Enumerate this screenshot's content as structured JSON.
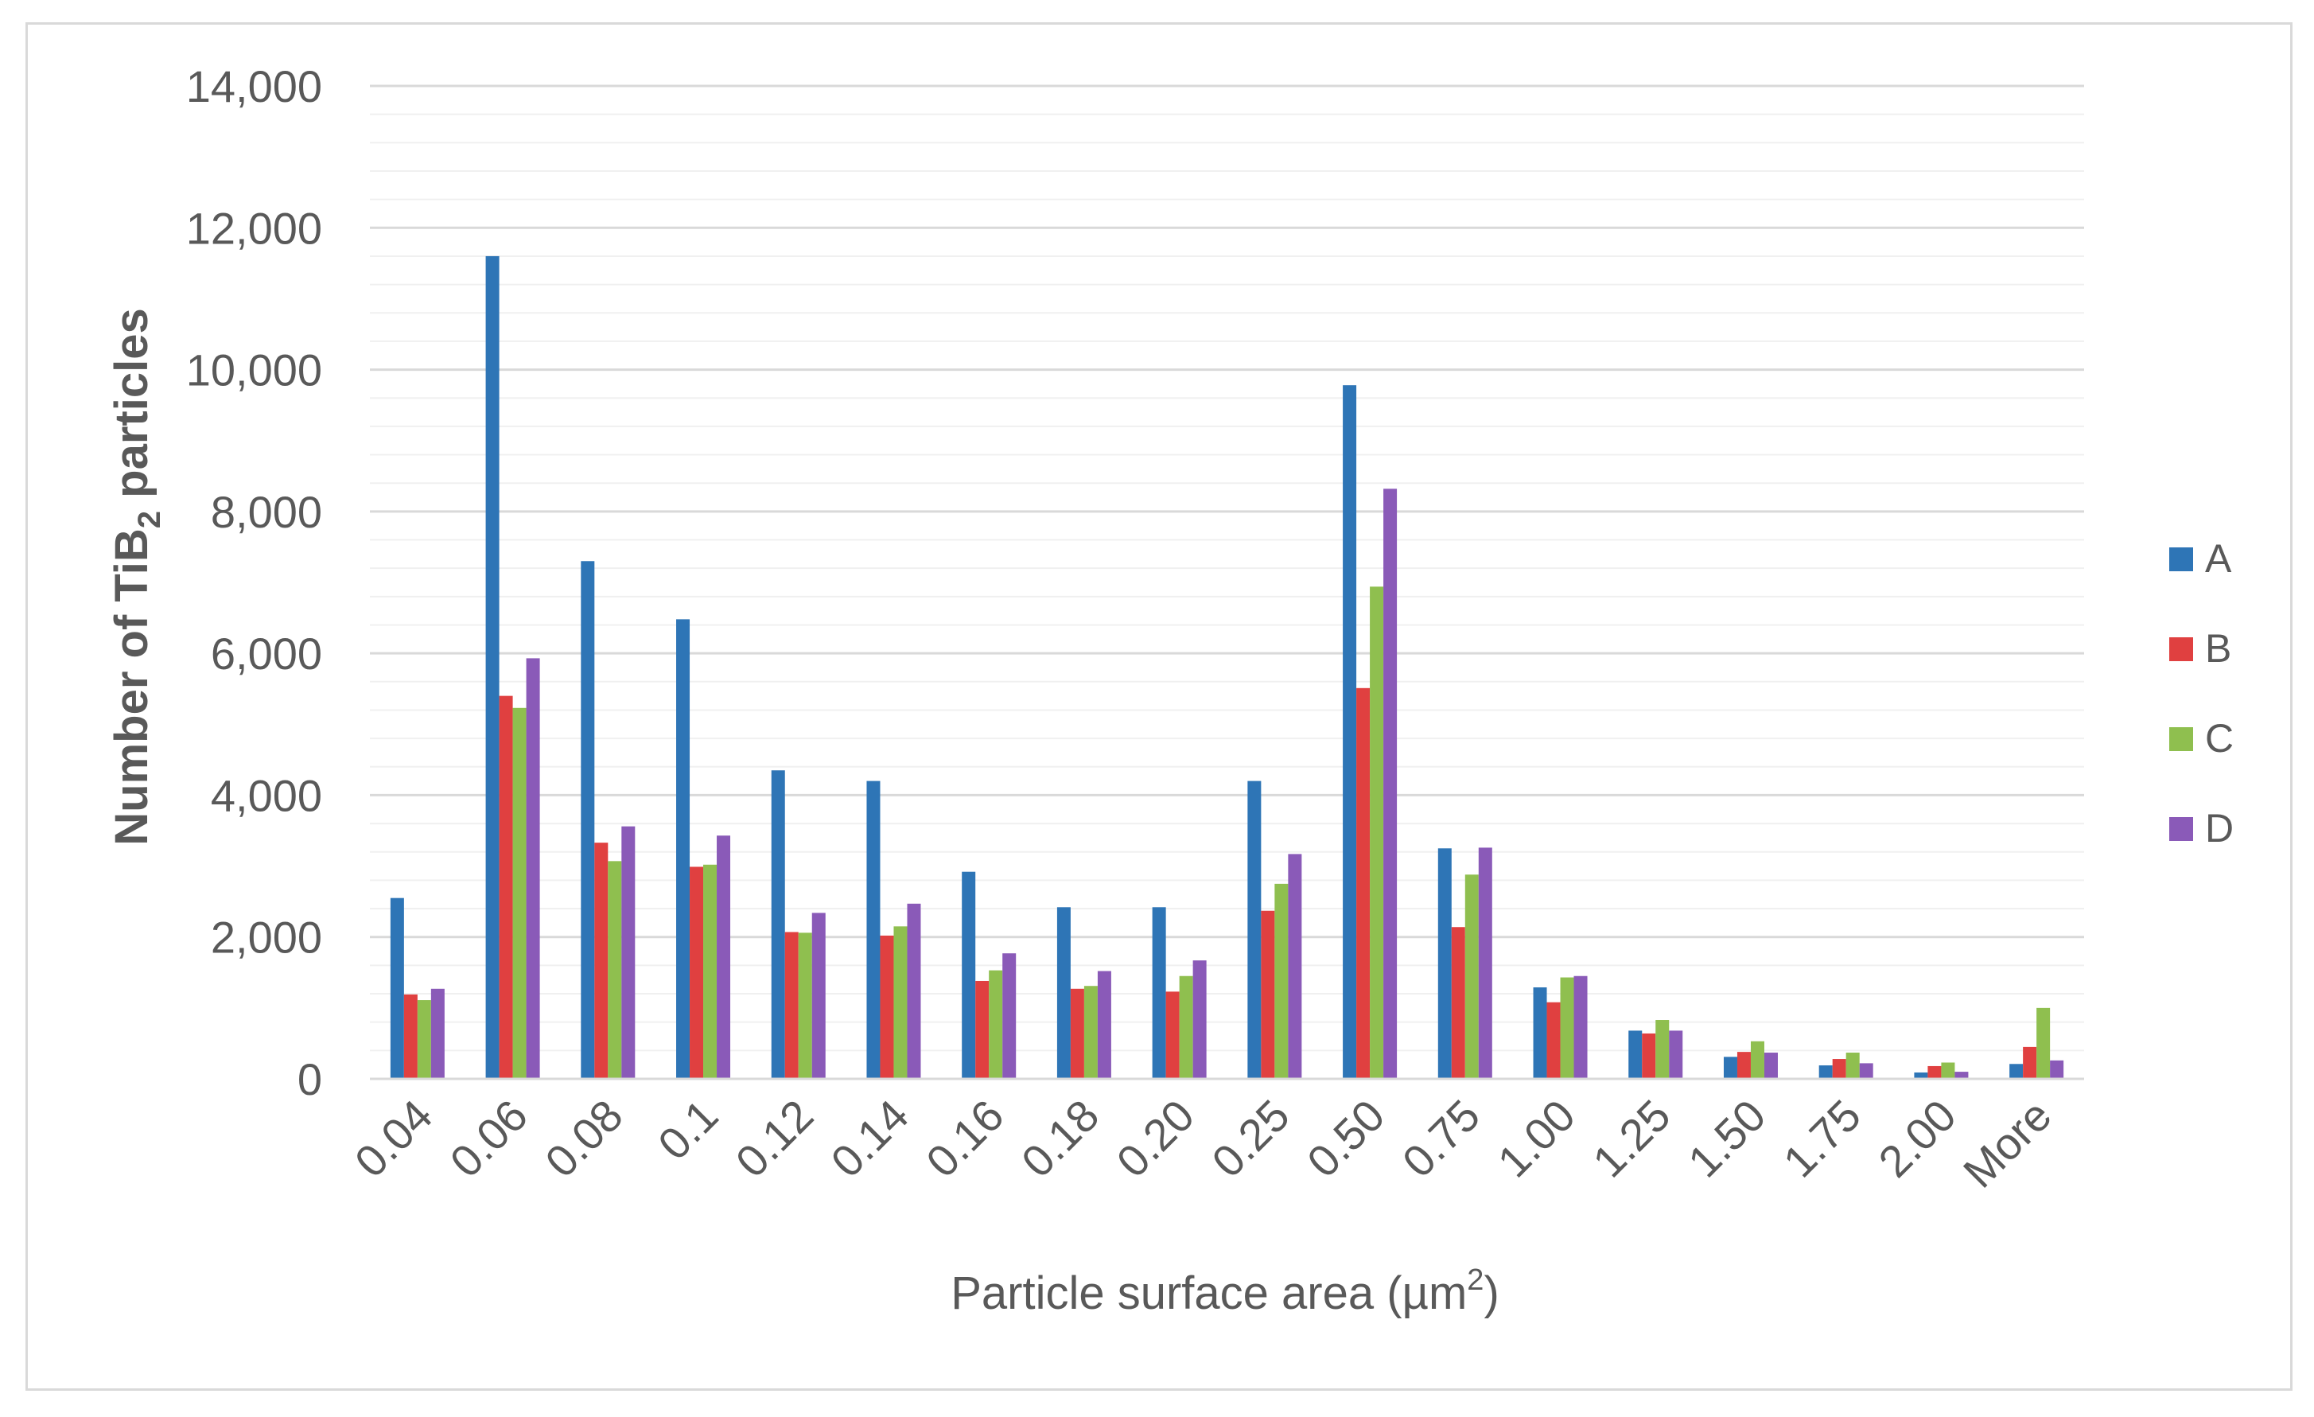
{
  "chart_data": {
    "type": "bar",
    "title": "",
    "xlabel": "Particle surface area (µm",
    "xlabel_sup": "2",
    "xlabel_end": ")",
    "ylabel": "Number of TiB",
    "ylabel_sub": "2",
    "ylabel_end": " particles",
    "ylim": [
      0,
      14000
    ],
    "yticks": [
      "0",
      "2,000",
      "4,000",
      "6,000",
      "8,000",
      "10,000",
      "12,000",
      "14,000"
    ],
    "ytick_values": [
      0,
      2000,
      4000,
      6000,
      8000,
      10000,
      12000,
      14000
    ],
    "grid": true,
    "legend_position": "right",
    "categories": [
      "0.04",
      "0.06",
      "0.08",
      "0.1",
      "0.12",
      "0.14",
      "0.16",
      "0.18",
      "0.20",
      "0.25",
      "0.50",
      "0.75",
      "1.00",
      "1.25",
      "1.50",
      "1.75",
      "2.00",
      "More"
    ],
    "series": [
      {
        "name": "A",
        "color": "#2e75b6",
        "values": [
          2550,
          11600,
          7300,
          6480,
          4350,
          4200,
          2920,
          2420,
          2420,
          4200,
          9780,
          3250,
          1290,
          680,
          310,
          190,
          90,
          210
        ]
      },
      {
        "name": "B",
        "color": "#e04040",
        "values": [
          1190,
          5400,
          3330,
          2990,
          2070,
          2020,
          1380,
          1270,
          1230,
          2370,
          5510,
          2140,
          1080,
          640,
          380,
          280,
          180,
          450
        ]
      },
      {
        "name": "C",
        "color": "#8fbf4f",
        "values": [
          1110,
          5230,
          3070,
          3020,
          2060,
          2150,
          1530,
          1310,
          1450,
          2750,
          6940,
          2880,
          1430,
          830,
          530,
          370,
          230,
          1000
        ]
      },
      {
        "name": "D",
        "color": "#8a5ab8",
        "values": [
          1270,
          5930,
          3560,
          3430,
          2340,
          2470,
          1770,
          1520,
          1670,
          3170,
          8320,
          3260,
          1450,
          680,
          370,
          220,
          100,
          260
        ]
      }
    ]
  }
}
